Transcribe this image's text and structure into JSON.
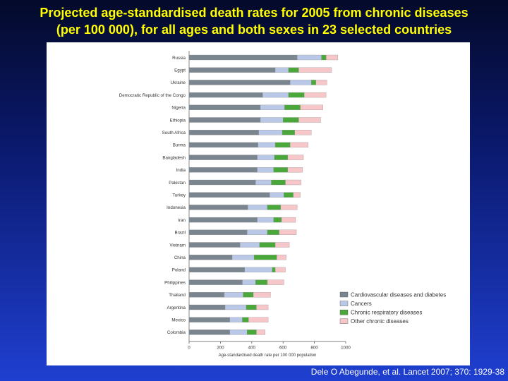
{
  "slide": {
    "title_line1": "Projected age-standardised death rates for 2005 from chronic diseases",
    "title_line2": "(per 100 000), for all ages and both sexes in 23 selected countries",
    "citation": "Dele O Abegunde, et al. Lancet 2007; 370: 1929-38"
  },
  "chart_data": {
    "type": "bar",
    "orientation": "horizontal",
    "stacked": true,
    "xlabel": "Age-standardised death rate per 100 000 population",
    "xlim": [
      0,
      1000
    ],
    "xticks": [
      0,
      200,
      400,
      600,
      800,
      1000
    ],
    "grid": false,
    "legend_position": "bottom-right",
    "categories": [
      "Russia",
      "Egypt",
      "Ukraine",
      "Democratic Republic of the Congo",
      "Nigeria",
      "Ethiopia",
      "South Africa",
      "Burma",
      "Bangladesh",
      "India",
      "Pakistan",
      "Turkey",
      "Indonesia",
      "Iran",
      "Brazil",
      "Vietnam",
      "China",
      "Poland",
      "Philippines",
      "Thailand",
      "Argentina",
      "Mexico",
      "Colombia"
    ],
    "series": [
      {
        "name": "Cardiovascular diseases and diabetes",
        "color": "#7a8590",
        "values": [
          690,
          550,
          645,
          470,
          455,
          455,
          445,
          440,
          435,
          435,
          425,
          515,
          375,
          435,
          370,
          325,
          275,
          355,
          340,
          225,
          230,
          260,
          260
        ]
      },
      {
        "name": "Cancers",
        "color": "#b9c8e6",
        "values": [
          155,
          85,
          135,
          165,
          155,
          145,
          150,
          110,
          110,
          105,
          100,
          90,
          125,
          105,
          130,
          125,
          140,
          175,
          85,
          120,
          135,
          80,
          110
        ]
      },
      {
        "name": "Chronic respiratory diseases",
        "color": "#4aa83a",
        "values": [
          30,
          65,
          30,
          100,
          100,
          100,
          80,
          95,
          85,
          90,
          90,
          60,
          85,
          50,
          75,
          100,
          145,
          20,
          75,
          65,
          65,
          40,
          60
        ]
      },
      {
        "name": "Other chronic diseases",
        "color": "#f6c6c9",
        "values": [
          75,
          210,
          70,
          140,
          145,
          140,
          105,
          115,
          100,
          95,
          100,
          45,
          105,
          90,
          110,
          90,
          60,
          65,
          105,
          110,
          75,
          125,
          55
        ]
      }
    ]
  }
}
